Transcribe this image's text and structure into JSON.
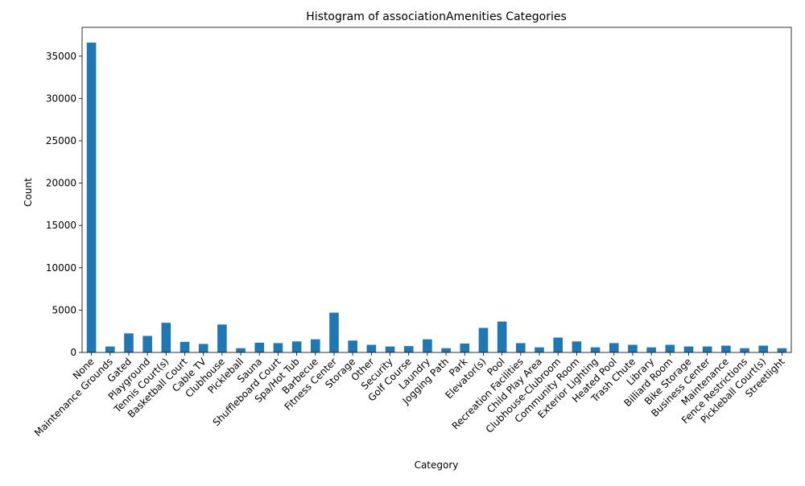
{
  "chart_data": {
    "type": "bar",
    "title": "Histogram of associationAmenities Categories",
    "xlabel": "Category",
    "ylabel": "Count",
    "ylim": [
      0,
      38400
    ],
    "yticks": [
      0,
      5000,
      10000,
      15000,
      20000,
      25000,
      30000,
      35000
    ],
    "grid": false,
    "bar_color": "#1f77b4",
    "categories": [
      "None",
      "Maintenance Grounds",
      "Gated",
      "Playground",
      "Tennis Court(s)",
      "Basketball Court",
      "Cable TV",
      "Clubhouse",
      "Pickleball",
      "Sauna",
      "Shuffleboard Court",
      "Spa/Hot Tub",
      "Barbecue",
      "Fitness Center",
      "Storage",
      "Other",
      "Security",
      "Golf Course",
      "Laundry",
      "Jogging Path",
      "Park",
      "Elevator(s)",
      "Pool",
      "Recreation Facilities",
      "Child Play Area",
      "Clubhouse-Clubroom",
      "Community Room",
      "Exterior Lighting",
      "Heated Pool",
      "Trash Chute",
      "Library",
      "Billiard Room",
      "Bike Storage",
      "Business Center",
      "Maintenance",
      "Fence Restrictions",
      "Pickleball Court(s)",
      "Streetlight"
    ],
    "values": [
      36600,
      700,
      2250,
      1950,
      3500,
      1250,
      1000,
      3300,
      500,
      1150,
      1100,
      1300,
      1550,
      4700,
      1400,
      900,
      700,
      750,
      1550,
      500,
      1050,
      2900,
      3650,
      1100,
      600,
      1750,
      1300,
      600,
      1100,
      900,
      600,
      900,
      700,
      700,
      800,
      500,
      800,
      500
    ]
  }
}
